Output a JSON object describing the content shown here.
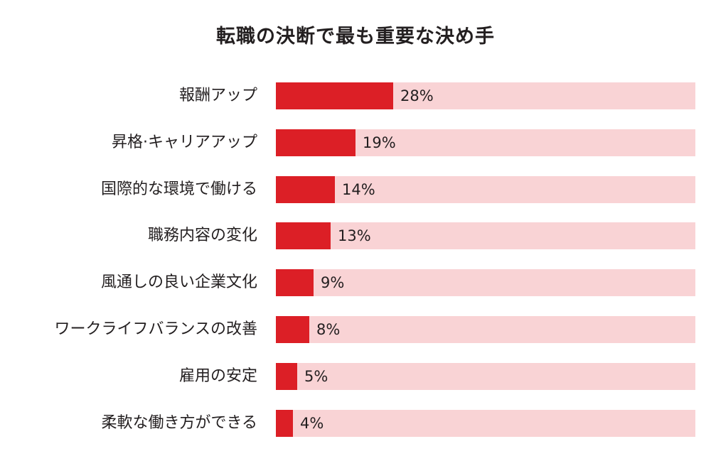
{
  "chart_data": {
    "type": "bar",
    "orientation": "horizontal",
    "title": "転職の決断で最も重要な決め手",
    "categories": [
      "報酬アップ",
      "昇格·キャリアアップ",
      "国際的な環境で働ける",
      "職務内容の変化",
      "風通しの良い企業文化",
      "ワークライフバランスの改善",
      "雇用の安定",
      "柔軟な働き方ができる"
    ],
    "values": [
      28,
      19,
      14,
      13,
      9,
      8,
      5,
      4
    ],
    "value_labels": [
      "28%",
      "19%",
      "14%",
      "13%",
      "9%",
      "8%",
      "5%",
      "4%"
    ],
    "unit": "%",
    "xlim": [
      0,
      100
    ],
    "grid": false,
    "legend": "none",
    "colors": {
      "bar": "#dc1f26",
      "track": "#f9d3d5",
      "text": "#231f20"
    }
  }
}
